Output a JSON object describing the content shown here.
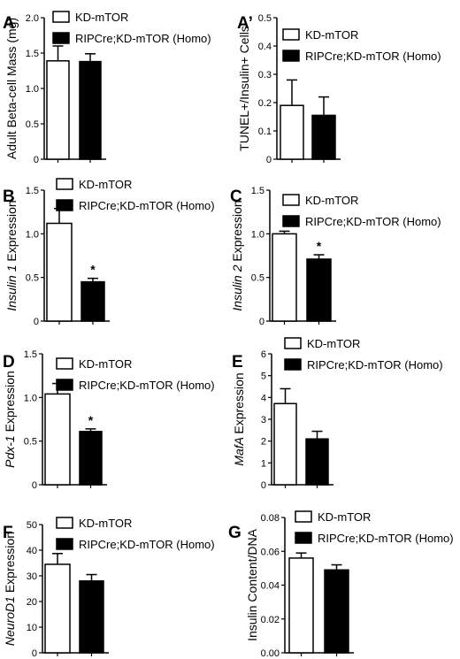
{
  "chart_data": [
    {
      "panel": "A",
      "type": "bar",
      "ylabel": "Adult Beta-cell Mass (mg)",
      "yticks": [
        "0",
        "0.5",
        "1.0",
        "1.5",
        "2.0"
      ],
      "ylim": [
        0,
        2.0
      ],
      "series": [
        {
          "name": "KD-mTOR",
          "value": 1.39,
          "error": 0.21
        },
        {
          "name": "RIPCre;KD-mTOR (Homo)",
          "value": 1.38,
          "error": 0.11
        }
      ],
      "significant": false,
      "legend": "top-left"
    },
    {
      "panel": "A’",
      "type": "bar",
      "ylabel": "TUNEL+/Insulin+ Cells",
      "yticks": [
        "0",
        "0.1",
        "0.2",
        "0.3",
        "0.4",
        "0.5"
      ],
      "ylim": [
        0,
        0.5
      ],
      "series": [
        {
          "name": "KD-mTOR",
          "value": 0.19,
          "error": 0.09
        },
        {
          "name": "RIPCre;KD-mTOR (Homo)",
          "value": 0.155,
          "error": 0.065
        }
      ],
      "significant": false,
      "legend": "top-left"
    },
    {
      "panel": "B",
      "type": "bar",
      "ylabel_italic": "Insulin 1",
      "ylabel_rest": "Expression",
      "yticks": [
        "0",
        "0.5",
        "1.0",
        "1.5"
      ],
      "ylim": [
        0,
        1.5
      ],
      "series": [
        {
          "name": "KD-mTOR",
          "value": 1.12,
          "error": 0.17
        },
        {
          "name": "RIPCre;KD-mTOR (Homo)",
          "value": 0.45,
          "error": 0.04
        }
      ],
      "significant": true,
      "marker": "*",
      "legend": "top-right"
    },
    {
      "panel": "C",
      "type": "bar",
      "ylabel_italic": "Insulin 2",
      "ylabel_rest": "Expression",
      "yticks": [
        "0",
        "0.5",
        "1.0",
        "1.5"
      ],
      "ylim": [
        0,
        1.5
      ],
      "series": [
        {
          "name": "KD-mTOR",
          "value": 1.0,
          "error": 0.03
        },
        {
          "name": "RIPCre;KD-mTOR (Homo)",
          "value": 0.71,
          "error": 0.05
        }
      ],
      "significant": true,
      "marker": "*",
      "legend": "top-right"
    },
    {
      "panel": "D",
      "type": "bar",
      "ylabel_italic": "Pdx-1",
      "ylabel_rest": "Expression",
      "yticks": [
        "0",
        "0.5",
        "1.0",
        "1.5"
      ],
      "ylim": [
        0,
        1.5
      ],
      "series": [
        {
          "name": "KD-mTOR",
          "value": 1.04,
          "error": 0.12
        },
        {
          "name": "RIPCre;KD-mTOR (Homo)",
          "value": 0.61,
          "error": 0.03
        }
      ],
      "significant": true,
      "marker": "*",
      "legend": "top-right"
    },
    {
      "panel": "E",
      "type": "bar",
      "ylabel_italic": "MafA",
      "ylabel_rest": "Expression",
      "yticks": [
        "0",
        "1",
        "2",
        "3",
        "4",
        "5",
        "6"
      ],
      "ylim": [
        0,
        6
      ],
      "series": [
        {
          "name": "KD-mTOR",
          "value": 3.72,
          "error": 0.68
        },
        {
          "name": "RIPCre;KD-mTOR (Homo)",
          "value": 2.1,
          "error": 0.35
        }
      ],
      "significant": false,
      "legend": "top-right"
    },
    {
      "panel": "F",
      "type": "bar",
      "ylabel_italic": "NeuroD1",
      "ylabel_rest": "Expression",
      "yticks": [
        "0",
        "10",
        "20",
        "30",
        "40",
        "50"
      ],
      "ylim": [
        0,
        50
      ],
      "series": [
        {
          "name": "KD-mTOR",
          "value": 34.5,
          "error": 4.2
        },
        {
          "name": "RIPCre;KD-mTOR (Homo)",
          "value": 28.0,
          "error": 2.5
        }
      ],
      "significant": false,
      "legend": "top-right"
    },
    {
      "panel": "G",
      "type": "bar",
      "ylabel": "Insulin Content/DNA",
      "yticks": [
        "0.00",
        "0.02",
        "0.04",
        "0.06",
        "0.08"
      ],
      "ylim": [
        0,
        0.08
      ],
      "series": [
        {
          "name": "KD-mTOR",
          "value": 0.056,
          "error": 0.003
        },
        {
          "name": "RIPCre;KD-mTOR (Homo)",
          "value": 0.049,
          "error": 0.003
        }
      ],
      "significant": false,
      "legend": "top-right"
    }
  ],
  "colors": {
    "series_1_fill": "#ffffff",
    "series_2_fill": "#000000",
    "axis": "#000000"
  }
}
